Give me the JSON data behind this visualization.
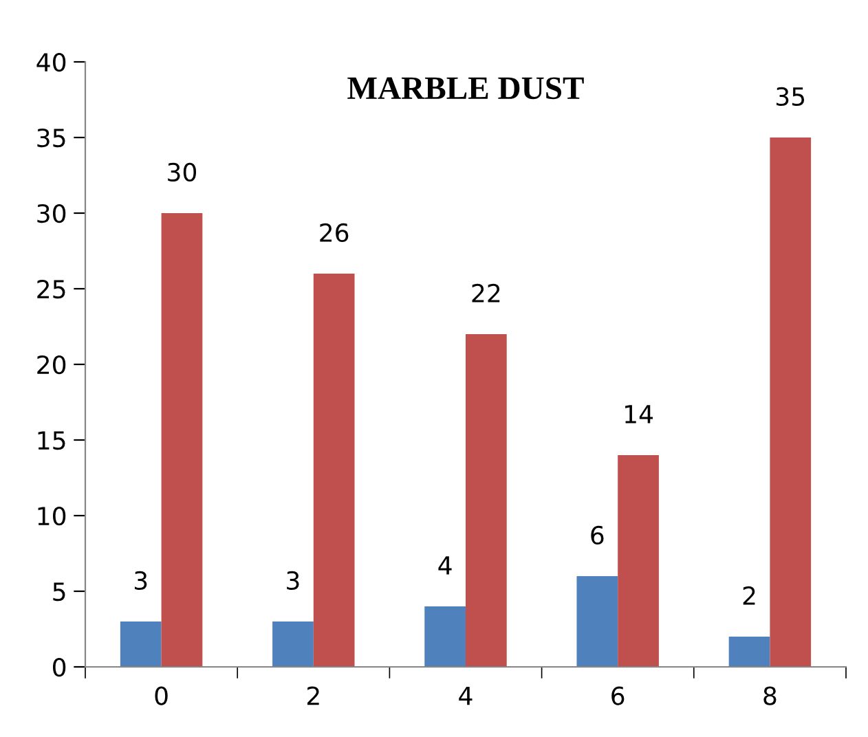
{
  "chart_data": {
    "type": "bar",
    "title": "MARBLE DUST",
    "categories": [
      "0",
      "2",
      "4",
      "6",
      "8"
    ],
    "series": [
      {
        "color": "#4f81bd",
        "values": [
          3,
          3,
          4,
          6,
          2
        ]
      },
      {
        "color": "#c0504d",
        "values": [
          30,
          26,
          22,
          14,
          35
        ]
      }
    ],
    "ylim": [
      0,
      40
    ],
    "yticks": [
      0,
      5,
      10,
      15,
      20,
      25,
      30,
      35,
      40
    ],
    "grid": false,
    "legend": false,
    "data_labels": true
  }
}
